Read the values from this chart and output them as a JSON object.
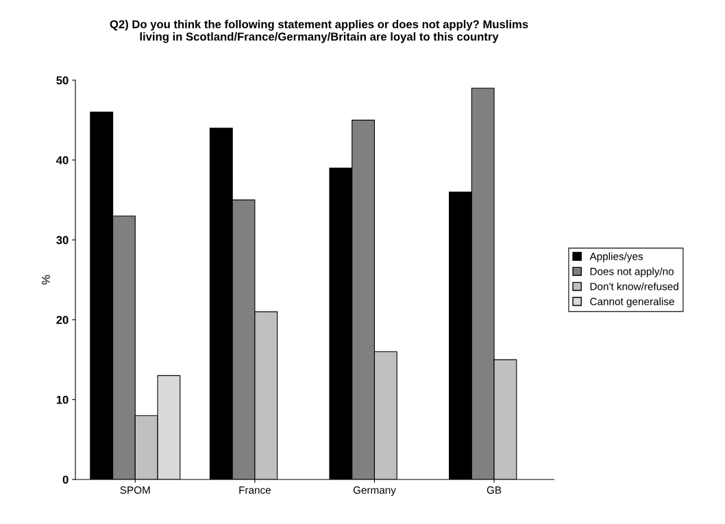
{
  "chart_data": {
    "type": "bar",
    "title": "Q2) Do you think the following statement applies or does not apply? Muslims\nliving in Scotland/France/Germany/Britain are loyal to this country",
    "ylabel": "%",
    "categories": [
      "SPOM",
      "France",
      "Germany",
      "GB"
    ],
    "series": [
      {
        "name": "Applies/yes",
        "color": "#000000",
        "values": [
          46,
          44,
          39,
          36
        ]
      },
      {
        "name": "Does not apply/no",
        "color": "#808080",
        "values": [
          33,
          35,
          45,
          49
        ]
      },
      {
        "name": "Don't know/refused",
        "color": "#c0c0c0",
        "values": [
          8,
          21,
          16,
          15
        ]
      },
      {
        "name": "Cannot generalise",
        "color": "#d9d9d9",
        "values": [
          13,
          null,
          null,
          null
        ]
      }
    ],
    "ylim": [
      0,
      50
    ],
    "yticks": [
      0,
      10,
      20,
      30,
      40,
      50
    ],
    "grid": false,
    "legend": "right"
  }
}
